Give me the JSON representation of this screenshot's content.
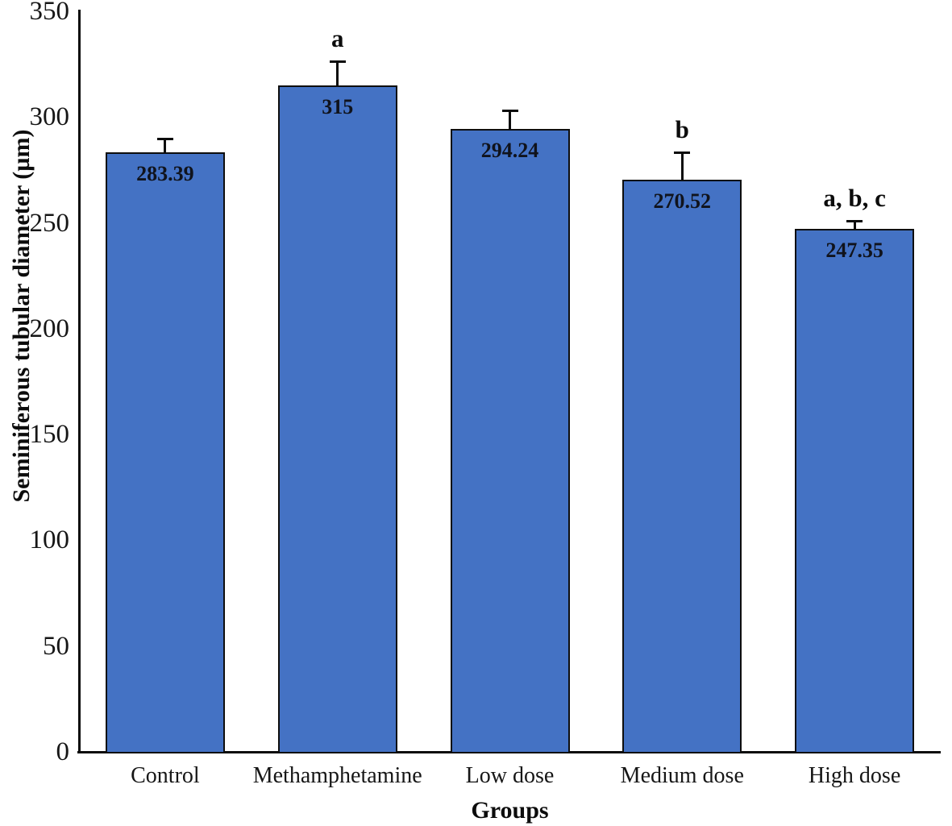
{
  "chart_data": {
    "type": "bar",
    "title": "",
    "xlabel": "Groups",
    "ylabel": "Seminiferous tubular diameter (µm)",
    "categories": [
      "Control",
      "Methamphetamine",
      "Low dose",
      "Medium dose",
      "High dose"
    ],
    "values": [
      283.39,
      315,
      294.24,
      270.52,
      247.35
    ],
    "value_labels": [
      "283.39",
      "315",
      "294.24",
      "270.52",
      "247.35"
    ],
    "error_bars_upper": [
      6.5,
      11.4,
      9.1,
      13,
      3.8
    ],
    "significance": [
      "",
      "a",
      "",
      "b",
      "a, b, c"
    ],
    "ylim": [
      0,
      350
    ],
    "yticks": [
      0,
      50,
      100,
      150,
      200,
      250,
      300,
      350
    ],
    "grid": false,
    "legend_position": "none",
    "bar_color": "#4472C4",
    "bar_border_color": "#0e0e0e",
    "axis_color": "#0c0c0c",
    "background_color": "#ffffff"
  }
}
